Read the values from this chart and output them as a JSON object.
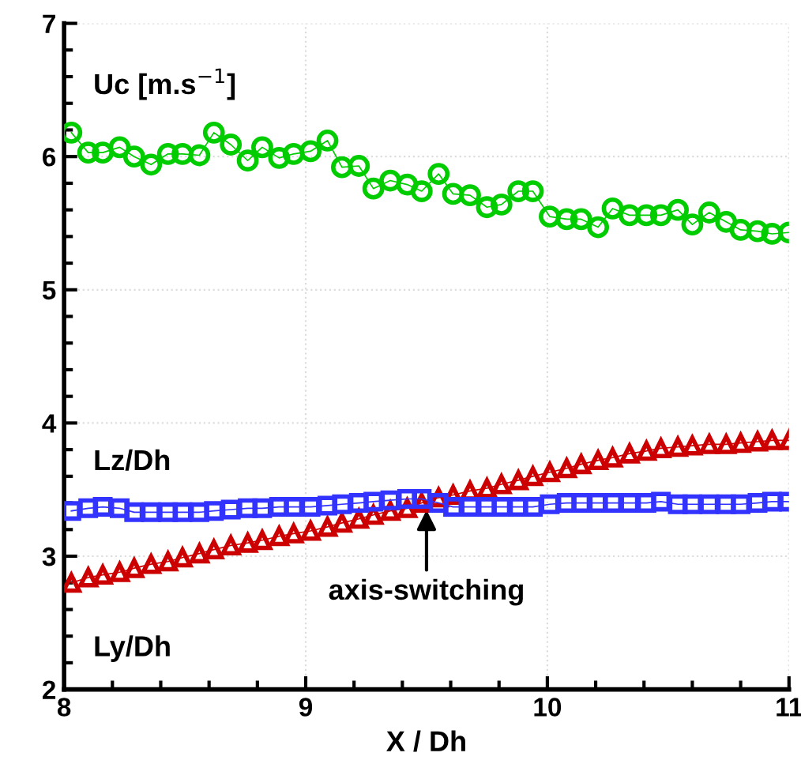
{
  "chart_data": {
    "type": "line",
    "xlabel": "X / Dh",
    "xlim": [
      8,
      11
    ],
    "ylim": [
      2,
      7
    ],
    "xticks": [
      8,
      9,
      10,
      11
    ],
    "yticks": [
      2,
      3,
      4,
      5,
      6,
      7
    ],
    "grid": true,
    "legend": false,
    "x": [
      8.03,
      8.1,
      8.16,
      8.23,
      8.29,
      8.36,
      8.43,
      8.49,
      8.56,
      8.62,
      8.69,
      8.76,
      8.82,
      8.89,
      8.95,
      9.02,
      9.09,
      9.15,
      9.22,
      9.28,
      9.35,
      9.42,
      9.48,
      9.55,
      9.61,
      9.68,
      9.75,
      9.81,
      9.88,
      9.94,
      10.01,
      10.08,
      10.14,
      10.21,
      10.27,
      10.34,
      10.41,
      10.47,
      10.54,
      10.6,
      10.67,
      10.74,
      10.8,
      10.87,
      10.93,
      11.0
    ],
    "series": [
      {
        "name": "Uc [m.s$^{−1}$]",
        "color": "#00cc00",
        "marker": "circle",
        "values": [
          6.18,
          6.03,
          6.03,
          6.07,
          6.0,
          5.94,
          6.02,
          6.02,
          6.01,
          6.18,
          6.09,
          5.97,
          6.07,
          5.99,
          6.02,
          6.04,
          6.12,
          5.92,
          5.93,
          5.76,
          5.82,
          5.79,
          5.74,
          5.87,
          5.72,
          5.71,
          5.62,
          5.64,
          5.74,
          5.74,
          5.55,
          5.53,
          5.53,
          5.47,
          5.61,
          5.56,
          5.56,
          5.56,
          5.6,
          5.49,
          5.58,
          5.51,
          5.45,
          5.44,
          5.42,
          5.43
        ]
      },
      {
        "name": "Lz/Dh",
        "color": "#3333ff",
        "marker": "square",
        "values": [
          3.34,
          3.36,
          3.37,
          3.36,
          3.33,
          3.33,
          3.33,
          3.33,
          3.33,
          3.34,
          3.35,
          3.36,
          3.36,
          3.37,
          3.37,
          3.37,
          3.38,
          3.39,
          3.4,
          3.41,
          3.42,
          3.43,
          3.43,
          3.4,
          3.37,
          3.37,
          3.37,
          3.37,
          3.37,
          3.37,
          3.39,
          3.4,
          3.4,
          3.4,
          3.4,
          3.4,
          3.4,
          3.41,
          3.39,
          3.39,
          3.39,
          3.39,
          3.39,
          3.4,
          3.41,
          3.41
        ]
      },
      {
        "name": "Ly/Dh",
        "color": "#cc0000",
        "marker": "triangle",
        "values": [
          2.8,
          2.84,
          2.86,
          2.88,
          2.91,
          2.94,
          2.96,
          2.99,
          3.02,
          3.05,
          3.08,
          3.1,
          3.12,
          3.15,
          3.17,
          3.19,
          3.22,
          3.25,
          3.28,
          3.31,
          3.34,
          3.36,
          3.4,
          3.44,
          3.46,
          3.49,
          3.51,
          3.54,
          3.57,
          3.6,
          3.63,
          3.66,
          3.69,
          3.72,
          3.74,
          3.77,
          3.79,
          3.81,
          3.82,
          3.83,
          3.84,
          3.84,
          3.85,
          3.86,
          3.87,
          3.87
        ]
      }
    ],
    "annotations": [
      {
        "text": "axis-switching",
        "x": 9.5,
        "y": 3.38
      }
    ]
  }
}
